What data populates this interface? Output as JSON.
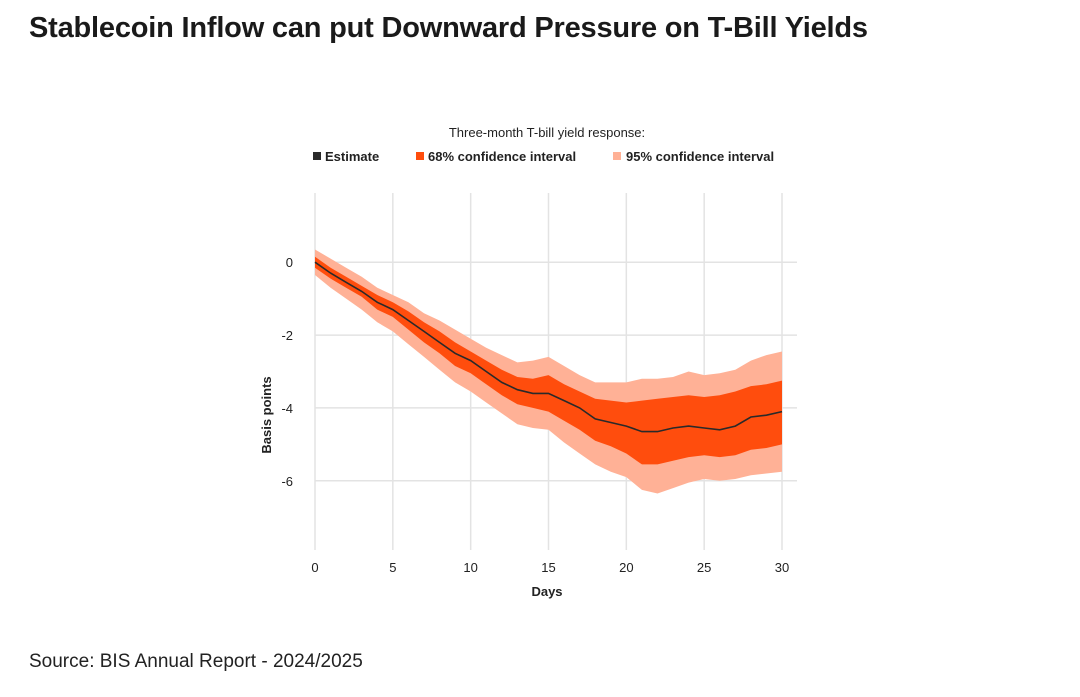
{
  "title": "Stablecoin Inflow can put Downward Pressure on T-Bill Yields",
  "source": "Source: BIS Annual Report - 2024/2025",
  "colors": {
    "estimate": "#2a2a2a",
    "ci68": "#ff4d0d",
    "ci95": "#ffb196",
    "grid": "#e3e3e3"
  },
  "chart_data": {
    "type": "area",
    "legend_title": "Three-month T-bill yield response:",
    "legend": [
      "Estimate",
      "68% confidence interval",
      "95% confidence interval"
    ],
    "xlabel": "Days",
    "ylabel": "Basis points",
    "xlim": [
      0,
      30
    ],
    "ylim": [
      -7.9,
      1.9
    ],
    "xticks": [
      0,
      5,
      10,
      15,
      20,
      25,
      30
    ],
    "yticks": [
      0,
      -2,
      -4,
      -6
    ],
    "x": [
      0,
      1,
      2,
      3,
      4,
      5,
      6,
      7,
      8,
      9,
      10,
      11,
      12,
      13,
      14,
      15,
      16,
      17,
      18,
      19,
      20,
      21,
      22,
      23,
      24,
      25,
      26,
      27,
      28,
      29,
      30
    ],
    "series": [
      {
        "name": "Estimate",
        "values": [
          0,
          -0.3,
          -0.55,
          -0.8,
          -1.1,
          -1.3,
          -1.6,
          -1.9,
          -2.2,
          -2.5,
          -2.7,
          -3.0,
          -3.3,
          -3.5,
          -3.6,
          -3.6,
          -3.8,
          -4.0,
          -4.3,
          -4.4,
          -4.5,
          -4.65,
          -4.65,
          -4.55,
          -4.5,
          -4.55,
          -4.6,
          -4.5,
          -4.25,
          -4.2,
          -4.1
        ]
      },
      {
        "name": "68% CI upper",
        "values": [
          0.15,
          -0.15,
          -0.4,
          -0.65,
          -0.9,
          -1.1,
          -1.35,
          -1.65,
          -1.9,
          -2.2,
          -2.45,
          -2.7,
          -2.95,
          -3.15,
          -3.2,
          -3.1,
          -3.35,
          -3.55,
          -3.75,
          -3.8,
          -3.85,
          -3.8,
          -3.75,
          -3.7,
          -3.65,
          -3.7,
          -3.65,
          -3.55,
          -3.4,
          -3.35,
          -3.25
        ]
      },
      {
        "name": "68% CI lower",
        "values": [
          -0.15,
          -0.45,
          -0.7,
          -0.95,
          -1.3,
          -1.5,
          -1.85,
          -2.2,
          -2.5,
          -2.85,
          -3.05,
          -3.35,
          -3.65,
          -3.9,
          -4.0,
          -4.1,
          -4.35,
          -4.6,
          -4.9,
          -5.05,
          -5.25,
          -5.55,
          -5.55,
          -5.45,
          -5.35,
          -5.3,
          -5.35,
          -5.3,
          -5.15,
          -5.1,
          -5.0
        ]
      },
      {
        "name": "95% CI upper",
        "values": [
          0.35,
          0.1,
          -0.15,
          -0.4,
          -0.7,
          -0.9,
          -1.1,
          -1.4,
          -1.6,
          -1.85,
          -2.1,
          -2.35,
          -2.55,
          -2.75,
          -2.7,
          -2.6,
          -2.85,
          -3.1,
          -3.3,
          -3.3,
          -3.3,
          -3.2,
          -3.2,
          -3.15,
          -3.0,
          -3.1,
          -3.05,
          -2.95,
          -2.7,
          -2.55,
          -2.45
        ]
      },
      {
        "name": "95% CI lower",
        "values": [
          -0.35,
          -0.7,
          -1.0,
          -1.3,
          -1.65,
          -1.9,
          -2.25,
          -2.6,
          -2.95,
          -3.3,
          -3.55,
          -3.85,
          -4.15,
          -4.45,
          -4.55,
          -4.6,
          -4.95,
          -5.25,
          -5.55,
          -5.75,
          -5.9,
          -6.25,
          -6.35,
          -6.2,
          -6.05,
          -5.95,
          -6.0,
          -5.95,
          -5.85,
          -5.8,
          -5.75
        ]
      }
    ]
  }
}
